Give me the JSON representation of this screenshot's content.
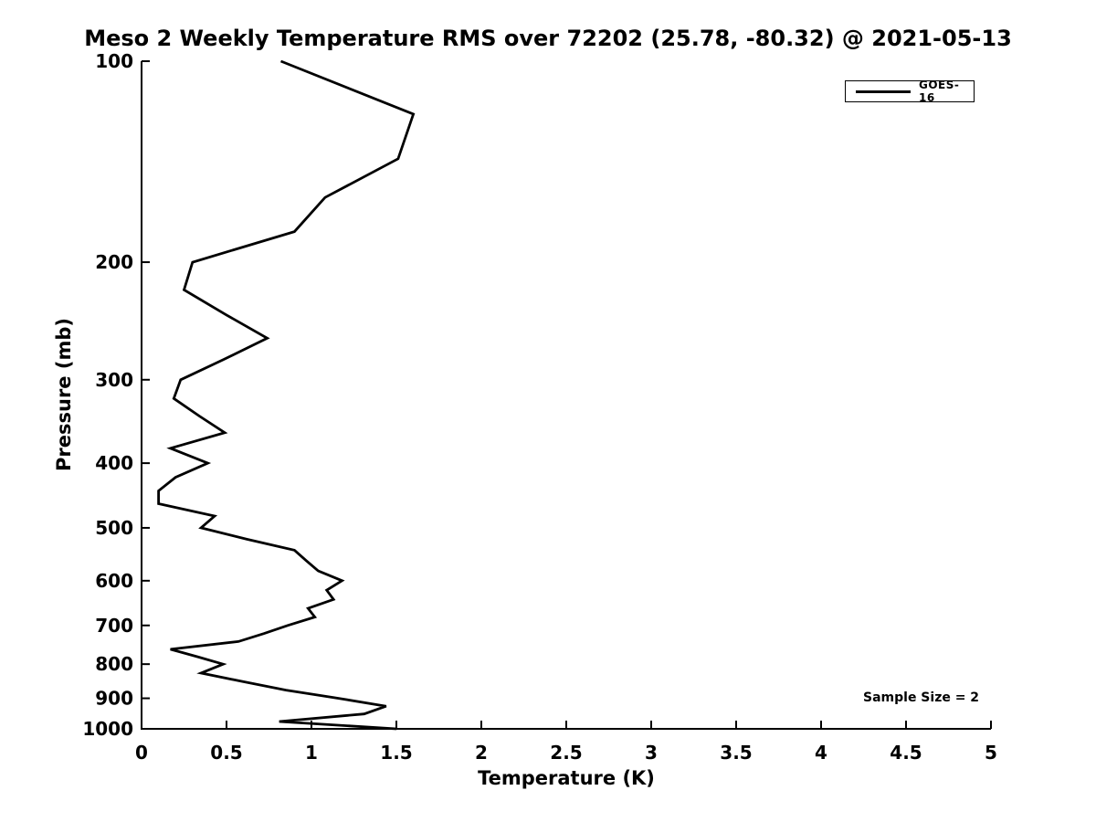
{
  "canvas": {
    "background_color": "#ffffff",
    "text_color": "#000000"
  },
  "chart_data": {
    "type": "line",
    "title": "Meso 2 Weekly Temperature RMS over 72202 (25.78, -80.32) @ 2021-05-13",
    "xlabel": "Temperature (K)",
    "ylabel": "Pressure (mb)",
    "xlim": [
      0,
      5
    ],
    "ylim": [
      100,
      1000
    ],
    "yscale": "log",
    "y_inverted": true,
    "grid": false,
    "box": "left-bottom-spines-only",
    "tick_direction": "in",
    "x_ticks": [
      0,
      0.5,
      1,
      1.5,
      2,
      2.5,
      3,
      3.5,
      4,
      4.5,
      5
    ],
    "x_tick_labels": [
      "0",
      "0.5",
      "1",
      "1.5",
      "2",
      "2.5",
      "3",
      "3.5",
      "4",
      "4.5",
      "5"
    ],
    "y_ticks": [
      100,
      200,
      300,
      400,
      500,
      600,
      700,
      800,
      900,
      1000
    ],
    "legend_position": "top-right",
    "annotation": "Sample Size = 2",
    "pressure_mb": [
      100,
      120,
      140,
      160,
      180,
      200,
      220,
      240,
      260,
      280,
      300,
      320,
      340,
      360,
      380,
      400,
      420,
      440,
      460,
      480,
      500,
      520,
      540,
      560,
      580,
      600,
      620,
      640,
      660,
      680,
      700,
      720,
      740,
      760,
      780,
      800,
      825,
      850,
      875,
      900,
      925,
      950,
      975,
      1000
    ],
    "series": [
      {
        "name": "GOES-16",
        "color": "#000000",
        "values": [
          0.82,
          1.6,
          1.51,
          1.08,
          0.9,
          0.3,
          0.25,
          0.5,
          0.74,
          0.48,
          0.23,
          0.19,
          0.34,
          0.49,
          0.17,
          0.39,
          0.2,
          0.1,
          0.1,
          0.43,
          0.35,
          0.62,
          0.9,
          0.97,
          1.04,
          1.18,
          1.09,
          1.13,
          0.98,
          1.02,
          0.86,
          0.72,
          0.57,
          0.17,
          0.33,
          0.48,
          0.35,
          0.6,
          0.85,
          1.16,
          1.44,
          1.31,
          0.81,
          1.5
        ]
      }
    ]
  }
}
